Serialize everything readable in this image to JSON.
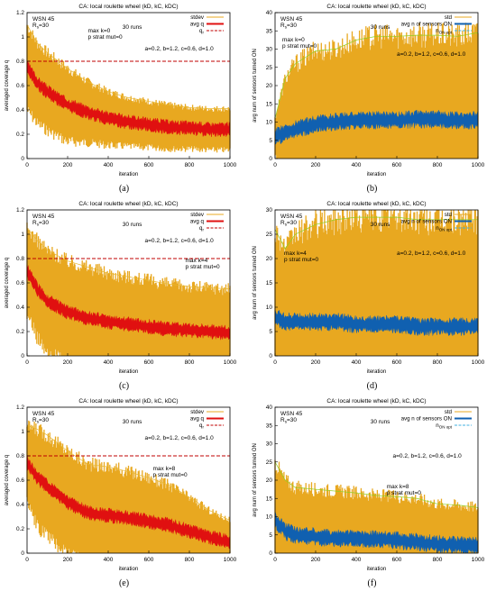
{
  "colors": {
    "stdev_fill": "#e8a820",
    "mean_q": "#e01010",
    "mean_sensors": "#1060b0",
    "ref_line": "#c00000",
    "sd_line_q": "#e8b830",
    "sd_line_s": "#90d020",
    "opt_line": "#40b0e0"
  },
  "chart_data": [
    {
      "id": "a",
      "type": "line",
      "caption": "(a)",
      "title": "CA: local roulette wheel (kD, kC, kDC)",
      "xlabel": "iteration",
      "ylabel": "averaged coverage q",
      "xlim": [
        0,
        1000
      ],
      "ylim": [
        0,
        1.2
      ],
      "xticks": [
        "0",
        "200",
        "400",
        "600",
        "800",
        "1000"
      ],
      "yticks": [
        "0",
        "0.2",
        "0.4",
        "0.6",
        "0.8",
        "1",
        "1.2"
      ],
      "tag_wsn": "WSN 45",
      "tag_rs": "R",
      "tag_rs_sub": "s",
      "tag_rs_val": "=30",
      "runs": "30 runs",
      "kparams": "max k=0",
      "pmut": "p strat mut=0",
      "abcd": "a=0.2, b=1.2, c=0.6, d=1.0",
      "legend": [
        "stdev",
        "avg q",
        "q"
      ],
      "legend_sub": "r",
      "qr": 0.8,
      "series": [
        {
          "name": "avg q",
          "x": [
            0,
            50,
            100,
            200,
            300,
            400,
            500,
            600,
            700,
            800,
            900,
            1000
          ],
          "y": [
            0.75,
            0.62,
            0.55,
            0.44,
            0.38,
            0.33,
            0.3,
            0.28,
            0.26,
            0.25,
            0.24,
            0.24
          ]
        },
        {
          "name": "stdev",
          "x": [
            0,
            50,
            100,
            200,
            300,
            400,
            500,
            600,
            700,
            800,
            900,
            1000
          ],
          "y": [
            0.35,
            0.33,
            0.32,
            0.3,
            0.25,
            0.22,
            0.2,
            0.19,
            0.18,
            0.17,
            0.17,
            0.17
          ]
        }
      ]
    },
    {
      "id": "b",
      "type": "line",
      "caption": "(b)",
      "title": "CA: local roulette wheel (kD, kC, kDC)",
      "xlabel": "iteration",
      "ylabel": "avg num of sensors turned ON",
      "xlim": [
        0,
        1000
      ],
      "ylim": [
        0,
        40
      ],
      "xticks": [
        "0",
        "200",
        "400",
        "600",
        "800",
        "1000"
      ],
      "yticks": [
        "0",
        "5",
        "10",
        "15",
        "20",
        "25",
        "30",
        "35",
        "40"
      ],
      "tag_wsn": "WSN 45",
      "tag_rs": "R",
      "tag_rs_sub": "s",
      "tag_rs_val": "=30",
      "runs": "30 runs",
      "kparams": "max k=0",
      "pmut": "p strat mut=0",
      "abcd": "a=0.2, b=1.2, c=0.6, d=1.0",
      "legend": [
        "std",
        "avg n of sensors ON",
        "n"
      ],
      "legend_sub": "ON opt",
      "series": [
        {
          "name": "avg n of sensors ON",
          "x": [
            0,
            50,
            100,
            200,
            300,
            400,
            500,
            600,
            700,
            800,
            900,
            1000
          ],
          "y": [
            6,
            7,
            8,
            9.5,
            10,
            10.5,
            10.5,
            10.5,
            10.8,
            10.8,
            10.5,
            10.5
          ]
        },
        {
          "name": "std",
          "x": [
            0,
            50,
            100,
            200,
            300,
            400,
            500,
            600,
            700,
            800,
            900,
            1000
          ],
          "y": [
            5,
            15,
            18,
            20,
            20,
            22,
            23,
            23,
            23,
            23,
            23,
            24
          ]
        }
      ]
    },
    {
      "id": "c",
      "type": "line",
      "caption": "(c)",
      "title": "CA: local roulette wheel (kD, kC, kDC)",
      "xlabel": "iteration",
      "ylabel": "averaged coverage q",
      "xlim": [
        0,
        1000
      ],
      "ylim": [
        0,
        1.2
      ],
      "xticks": [
        "0",
        "200",
        "400",
        "600",
        "800",
        "1000"
      ],
      "yticks": [
        "0",
        "0.2",
        "0.4",
        "0.6",
        "0.8",
        "1",
        "1.2"
      ],
      "tag_wsn": "WSN 45",
      "tag_rs": "R",
      "tag_rs_sub": "s",
      "tag_rs_val": "=30",
      "runs": "30 runs",
      "kparams": "max k=4",
      "pmut": "p strat mut=0",
      "abcd": "a=0.2, b=1.2, c=0.6, d=1.0",
      "legend": [
        "stdev",
        "avg q",
        "q"
      ],
      "legend_sub": "r",
      "qr": 0.8,
      "series": [
        {
          "name": "avg q",
          "x": [
            0,
            50,
            100,
            200,
            300,
            400,
            500,
            600,
            700,
            800,
            900,
            1000
          ],
          "y": [
            0.7,
            0.55,
            0.45,
            0.36,
            0.31,
            0.28,
            0.26,
            0.24,
            0.22,
            0.21,
            0.2,
            0.19
          ]
        },
        {
          "name": "stdev",
          "x": [
            0,
            50,
            100,
            200,
            300,
            400,
            500,
            600,
            700,
            800,
            900,
            1000
          ],
          "y": [
            0.35,
            0.4,
            0.42,
            0.42,
            0.42,
            0.4,
            0.39,
            0.38,
            0.37,
            0.36,
            0.36,
            0.36
          ]
        }
      ]
    },
    {
      "id": "d",
      "type": "line",
      "caption": "(d)",
      "title": "CA: local roulette wheel (kD, kC, kDC)",
      "xlabel": "iteration",
      "ylabel": "avg num of sensors turned ON",
      "xlim": [
        0,
        1000
      ],
      "ylim": [
        0,
        30
      ],
      "xticks": [
        "0",
        "200",
        "400",
        "600",
        "800",
        "1000"
      ],
      "yticks": [
        "0",
        "5",
        "10",
        "15",
        "20",
        "25",
        "30"
      ],
      "tag_wsn": "WSN 45",
      "tag_rs": "R",
      "tag_rs_sub": "s",
      "tag_rs_val": "=30",
      "runs": "30 runs",
      "kparams": "max k=4",
      "pmut": "p strat mut=0",
      "abcd": "a=0.2, b=1.2, c=0.6, d=1.0",
      "legend": [
        "std",
        "avg n of sensors ON",
        "n"
      ],
      "legend_sub": "ON opt",
      "series": [
        {
          "name": "avg n of sensors ON",
          "x": [
            0,
            50,
            100,
            200,
            300,
            400,
            500,
            600,
            700,
            800,
            900,
            1000
          ],
          "y": [
            8,
            7,
            7,
            7,
            7,
            6.5,
            6.5,
            6.5,
            6,
            6,
            6,
            6
          ]
        },
        {
          "name": "std",
          "x": [
            0,
            50,
            100,
            200,
            300,
            400,
            500,
            600,
            700,
            800,
            900,
            1000
          ],
          "y": [
            18,
            15,
            18,
            20,
            21,
            22,
            22,
            22,
            22,
            22,
            22,
            22
          ]
        }
      ]
    },
    {
      "id": "e",
      "type": "line",
      "caption": "(e)",
      "title": "CA: local roulette wheel (kD, kC, kDC)",
      "xlabel": "iteration",
      "ylabel": "averaged coverage q",
      "xlim": [
        0,
        1000
      ],
      "ylim": [
        0,
        1.2
      ],
      "xticks": [
        "0",
        "200",
        "400",
        "600",
        "800",
        "1000"
      ],
      "yticks": [
        "0",
        "0.2",
        "0.4",
        "0.6",
        "0.8",
        "1",
        "1.2"
      ],
      "tag_wsn": "WSN 45",
      "tag_rs": "R",
      "tag_rs_sub": "s",
      "tag_rs_val": "=30",
      "runs": "30 runs",
      "kparams": "max k=8",
      "pmut": "p strat mut=0",
      "abcd": "a=0.2, b=1.2, c=0.6, d=1.0",
      "legend": [
        "stdev",
        "avg q",
        "q"
      ],
      "legend_sub": "r",
      "qr": 0.8,
      "series": [
        {
          "name": "avg q",
          "x": [
            0,
            50,
            100,
            200,
            300,
            400,
            500,
            600,
            700,
            800,
            900,
            1000
          ],
          "y": [
            0.75,
            0.62,
            0.55,
            0.42,
            0.33,
            0.31,
            0.29,
            0.26,
            0.23,
            0.18,
            0.13,
            0.09
          ]
        },
        {
          "name": "stdev",
          "x": [
            0,
            50,
            100,
            200,
            300,
            400,
            500,
            600,
            700,
            800,
            900,
            1000
          ],
          "y": [
            0.3,
            0.4,
            0.42,
            0.42,
            0.4,
            0.4,
            0.38,
            0.36,
            0.33,
            0.28,
            0.22,
            0.18
          ]
        }
      ]
    },
    {
      "id": "f",
      "type": "line",
      "caption": "(f)",
      "title": "CA: local roulette wheel (kD, kC, kDC)",
      "xlabel": "iteration",
      "ylabel": "avg num of sensors turned ON",
      "xlim": [
        0,
        1000
      ],
      "ylim": [
        0,
        40
      ],
      "xticks": [
        "0",
        "200",
        "400",
        "600",
        "800",
        "1000"
      ],
      "yticks": [
        "0",
        "5",
        "10",
        "15",
        "20",
        "25",
        "30",
        "35",
        "40"
      ],
      "tag_wsn": "WSN 45",
      "tag_rs": "R",
      "tag_rs_sub": "s",
      "tag_rs_val": "=30",
      "runs": "30 runs",
      "kparams": "max k=8",
      "pmut": "p strat mut=0",
      "abcd": "a=0.2, b=1.2, c=0.6, d=1.0",
      "legend": [
        "std",
        "avg n of sensors ON",
        "n"
      ],
      "legend_sub": "ON opt",
      "series": [
        {
          "name": "avg n of sensors ON",
          "x": [
            0,
            50,
            100,
            200,
            300,
            400,
            500,
            600,
            700,
            800,
            900,
            1000
          ],
          "y": [
            9,
            6,
            5,
            4.5,
            4,
            4,
            3.8,
            3.5,
            3,
            2.5,
            2.2,
            2
          ]
        },
        {
          "name": "std",
          "x": [
            0,
            50,
            100,
            200,
            300,
            400,
            500,
            600,
            700,
            800,
            900,
            1000
          ],
          "y": [
            16,
            14,
            13,
            13,
            13,
            12.5,
            12,
            12,
            12,
            11,
            11,
            10.5
          ]
        }
      ]
    }
  ]
}
